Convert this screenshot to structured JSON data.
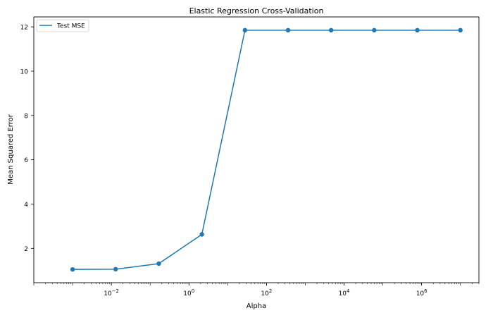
{
  "chart_data": {
    "type": "line",
    "title": "Elastic Regression Cross-Validation",
    "xlabel": "Alpha",
    "ylabel": "Mean Squared Error",
    "xscale": "log",
    "xlim": [
      0.0001,
      30000000
    ],
    "ylim": [
      0.45,
      12.45
    ],
    "x_ticks": [
      {
        "value": 0.01,
        "base": "10",
        "exp": "−2"
      },
      {
        "value": 1,
        "base": "10",
        "exp": "0"
      },
      {
        "value": 100,
        "base": "10",
        "exp": "2"
      },
      {
        "value": 10000,
        "base": "10",
        "exp": "4"
      },
      {
        "value": 1000000,
        "base": "10",
        "exp": "6"
      }
    ],
    "y_ticks": [
      {
        "value": 2,
        "label": "2"
      },
      {
        "value": 4,
        "label": "4"
      },
      {
        "value": 6,
        "label": "6"
      },
      {
        "value": 8,
        "label": "8"
      },
      {
        "value": 10,
        "label": "10"
      },
      {
        "value": 12,
        "label": "12"
      }
    ],
    "grid": false,
    "legend_position": "top-left",
    "series": [
      {
        "name": "Test MSE",
        "color": "#1f77b4",
        "marker": "circle",
        "x": [
          0.001,
          0.0129,
          0.1668,
          2.154,
          27.83,
          359.4,
          4642,
          59948,
          774264,
          10000000
        ],
        "y": [
          1.05,
          1.06,
          1.31,
          2.63,
          11.85,
          11.85,
          11.85,
          11.85,
          11.85,
          11.85
        ]
      }
    ]
  }
}
